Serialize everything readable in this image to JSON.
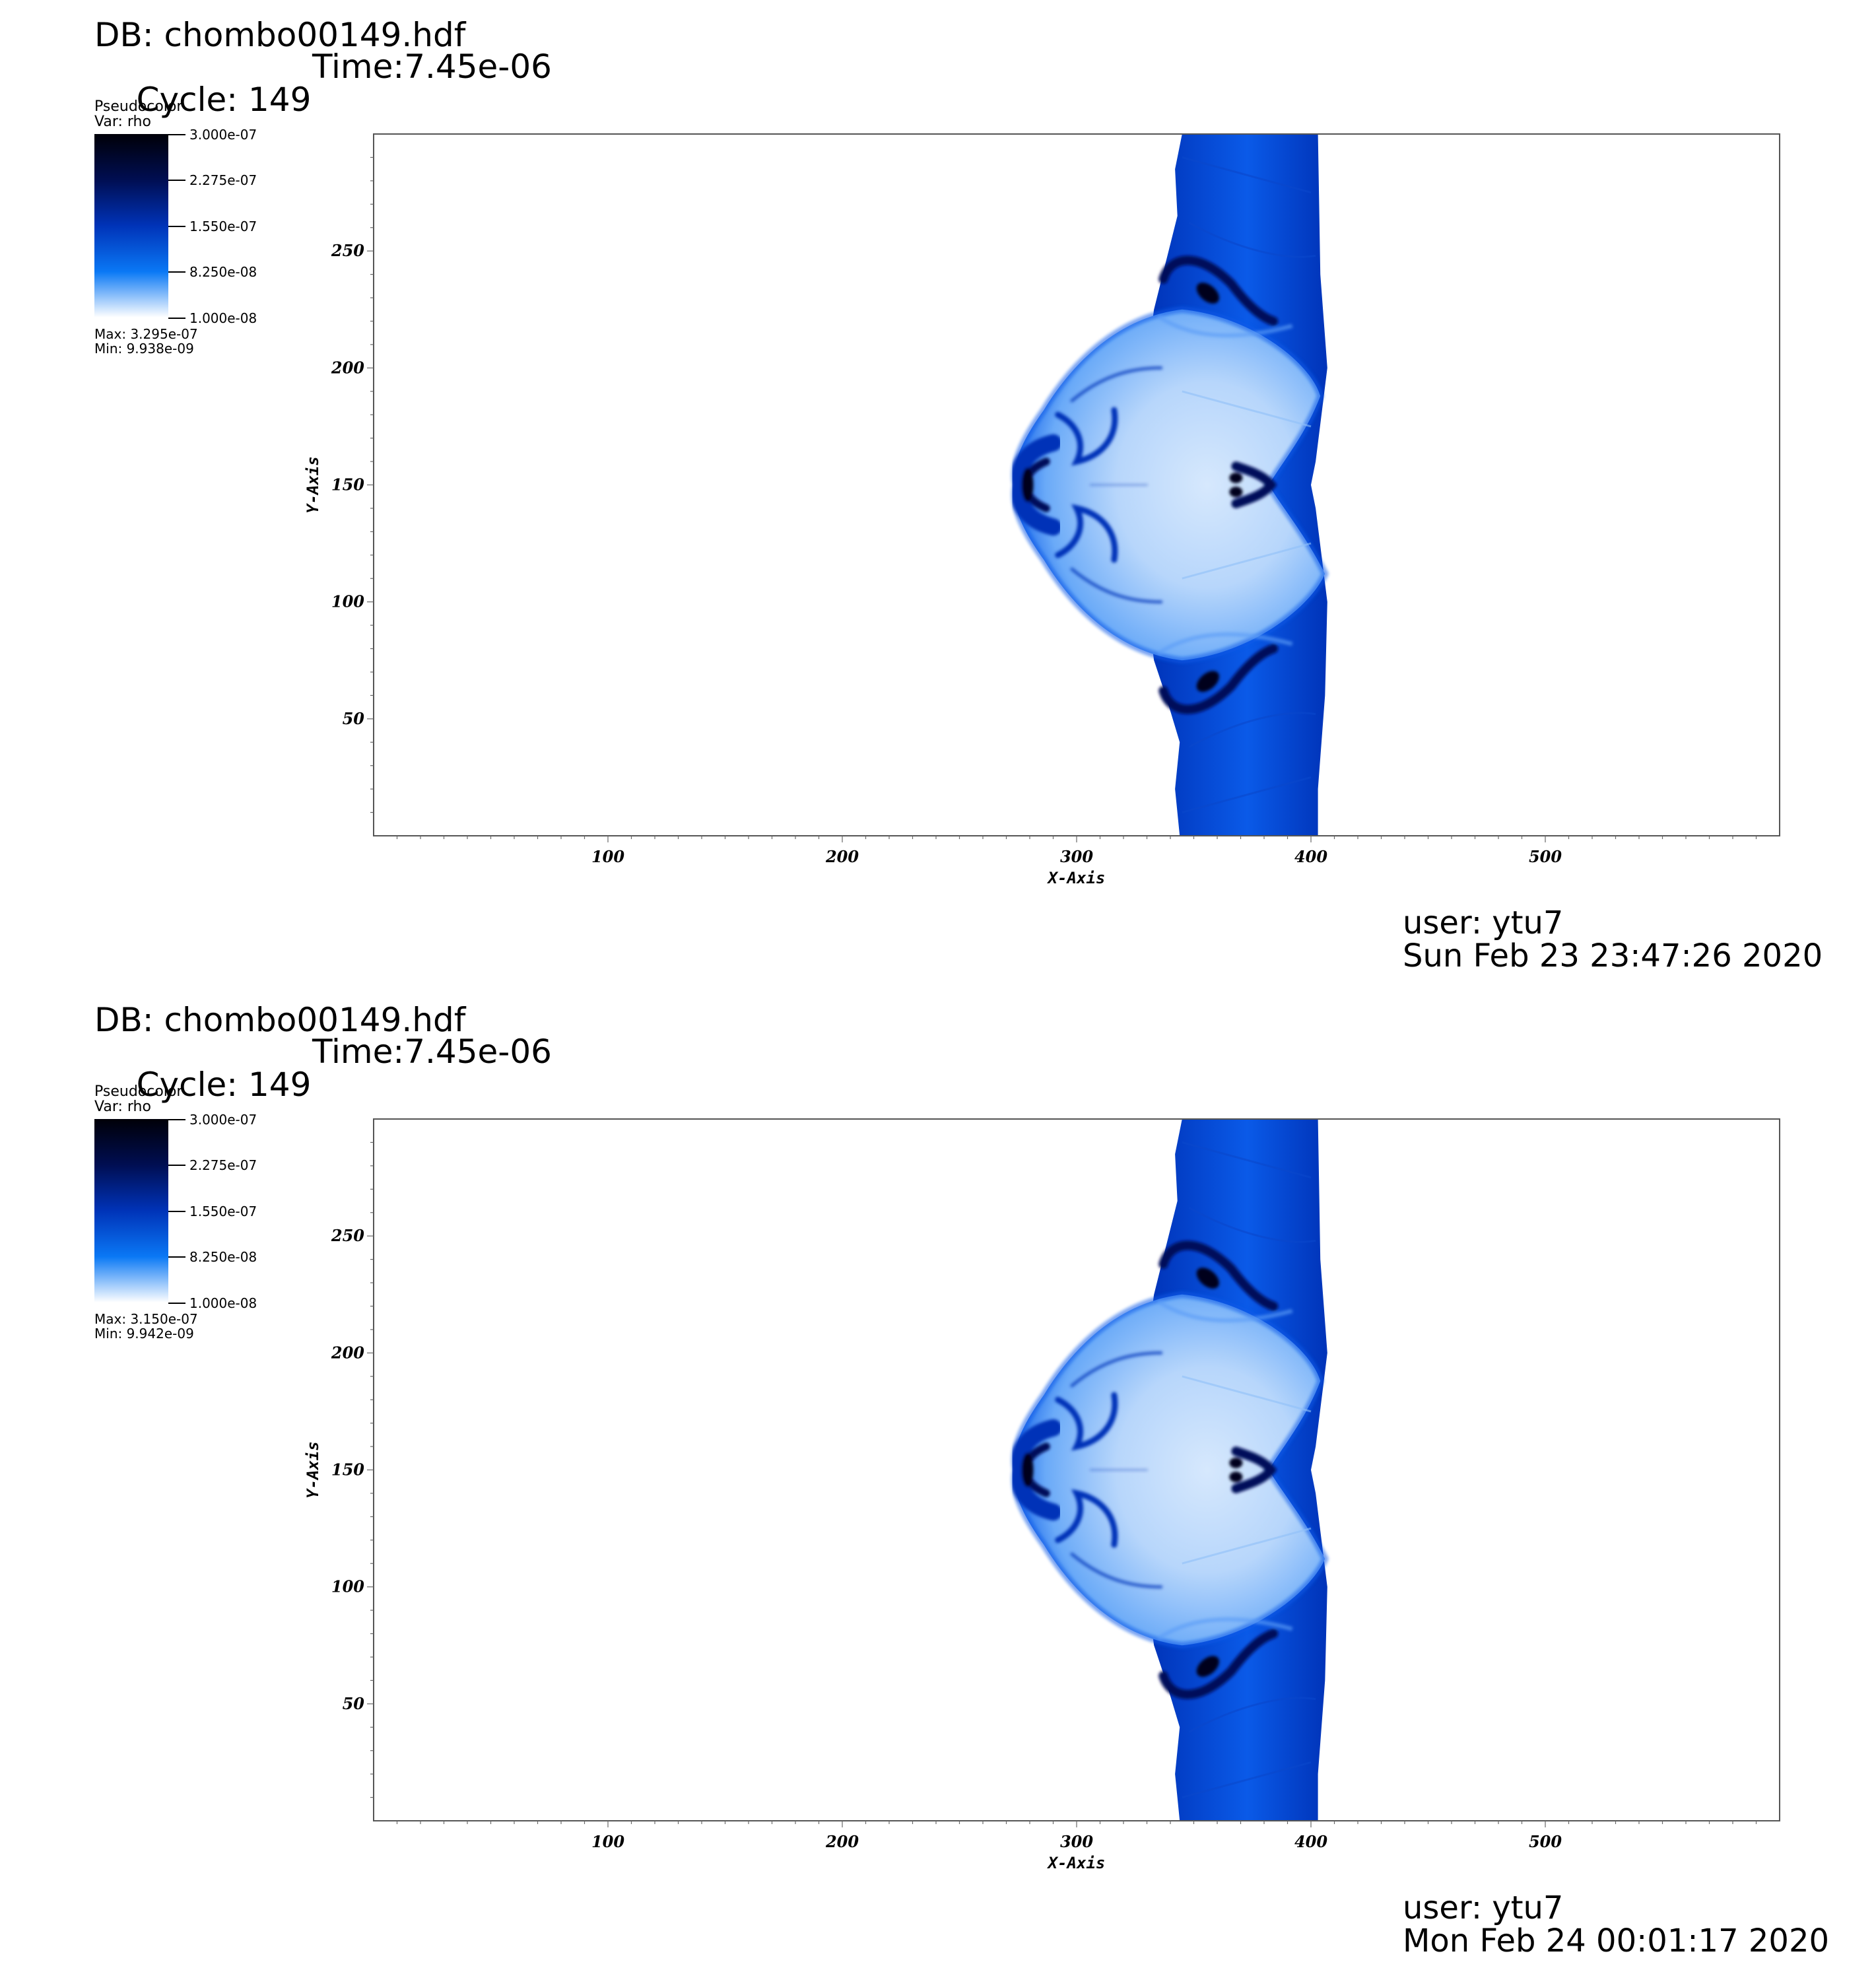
{
  "plots": [
    {
      "db": "DB: chombo00149.hdf",
      "cycle": "Cycle: 149",
      "time": "Time:7.45e-06",
      "legend": {
        "plot_type": "Pseudocolor",
        "var": "Var: rho",
        "ticks": [
          "3.000e-07",
          "2.275e-07",
          "1.550e-07",
          "8.250e-08",
          "1.000e-08"
        ],
        "max": "Max:  3.295e-07",
        "min": "Min:  9.938e-09"
      },
      "user": "user: ytu7",
      "date": "Sun Feb 23 23:47:26 2020"
    },
    {
      "db": "DB: chombo00149.hdf",
      "cycle": "Cycle: 149",
      "time": "Time:7.45e-06",
      "legend": {
        "plot_type": "Pseudocolor",
        "var": "Var: rho",
        "ticks": [
          "3.000e-07",
          "2.275e-07",
          "1.550e-07",
          "8.250e-08",
          "1.000e-08"
        ],
        "max": "Max:  3.150e-07",
        "min": "Min:  9.942e-09"
      },
      "user": "user: ytu7",
      "date": "Mon Feb 24 00:01:17 2020"
    }
  ],
  "colors": {
    "dark": "#00021a",
    "navy": "#00115a",
    "deep_blue": "#0033b8",
    "mid_blue": "#0a5ae8",
    "light_blue": "#6aaaf8",
    "pale_blue": "#d6e8fd"
  },
  "chart_data": [
    {
      "type": "heatmap",
      "title": "",
      "xlabel": "X-Axis",
      "ylabel": "Y-Axis",
      "xlim": [
        0,
        600
      ],
      "ylim": [
        0,
        300
      ],
      "xticks": [
        100,
        200,
        300,
        400,
        500
      ],
      "yticks": [
        50,
        100,
        150,
        200,
        250
      ],
      "colorbar": {
        "variable": "rho",
        "min": 1e-08,
        "max": 3e-07
      },
      "regions": [
        {
          "name": "post-shock slab",
          "x": [
            344,
            403
          ],
          "y": [
            0,
            300
          ],
          "rho": 1.6e-07
        },
        {
          "name": "shocked bubble",
          "x": [
            274,
            407
          ],
          "y": [
            75,
            225
          ],
          "rho": 6e-08
        },
        {
          "name": "dense vortex core (left)",
          "x": [
            276,
            284
          ],
          "y": [
            146,
            154
          ],
          "rho": 3e-07
        },
        {
          "name": "dense vortex (upper)",
          "x": [
            350,
            362
          ],
          "y": [
            230,
            240
          ],
          "rho": 2.5e-07
        },
        {
          "name": "dense vortex (lower)",
          "x": [
            350,
            362
          ],
          "y": [
            60,
            70
          ],
          "rho": 2.5e-07
        }
      ]
    },
    {
      "type": "heatmap",
      "title": "",
      "xlabel": "X-Axis",
      "ylabel": "Y-Axis",
      "xlim": [
        0,
        600
      ],
      "ylim": [
        0,
        300
      ],
      "xticks": [
        100,
        200,
        300,
        400,
        500
      ],
      "yticks": [
        50,
        100,
        150,
        200,
        250
      ],
      "colorbar": {
        "variable": "rho",
        "min": 1e-08,
        "max": 3e-07
      },
      "regions": [
        {
          "name": "post-shock slab",
          "x": [
            344,
            403
          ],
          "y": [
            0,
            300
          ],
          "rho": 1.6e-07
        },
        {
          "name": "shocked bubble",
          "x": [
            274,
            407
          ],
          "y": [
            75,
            225
          ],
          "rho": 6e-08
        },
        {
          "name": "dense vortex core (left)",
          "x": [
            274,
            282
          ],
          "y": [
            146,
            154
          ],
          "rho": 3e-07
        },
        {
          "name": "dense vortex (upper)",
          "x": [
            350,
            362
          ],
          "y": [
            230,
            240
          ],
          "rho": 2.5e-07
        },
        {
          "name": "dense vortex (lower)",
          "x": [
            350,
            362
          ],
          "y": [
            60,
            70
          ],
          "rho": 2.5e-07
        }
      ]
    }
  ]
}
